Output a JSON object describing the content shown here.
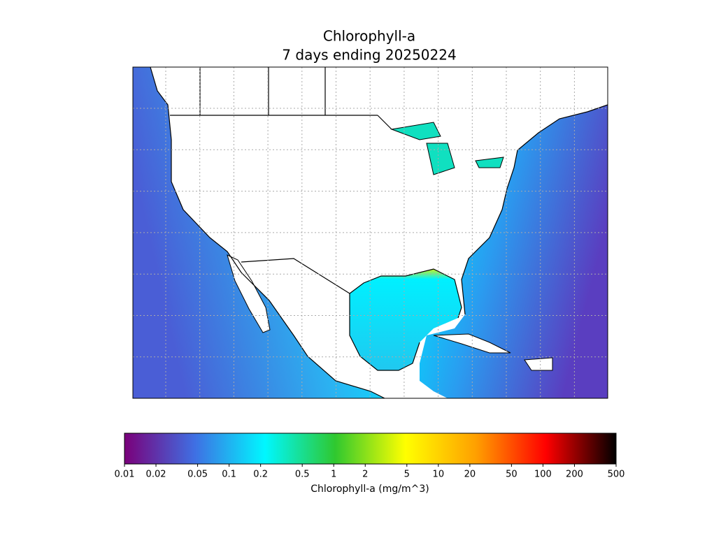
{
  "title": [
    "Chlorophyll-a",
    "7 days ending 20250224"
  ],
  "colorbar": {
    "label": "Chlorophyll-a (mg/m^3)",
    "scale": "log",
    "lim": [
      0.01,
      500
    ],
    "ticks": [
      0.01,
      0.02,
      0.05,
      0.1,
      0.2,
      0.5,
      1,
      2,
      5,
      10,
      20,
      50,
      100,
      200,
      500
    ],
    "colors": [
      "#7a007a",
      "#3f6fe3",
      "#00f7ff",
      "#2fc82f",
      "#ffff00",
      "#ffa000",
      "#ff0000",
      "#000000"
    ]
  }
}
